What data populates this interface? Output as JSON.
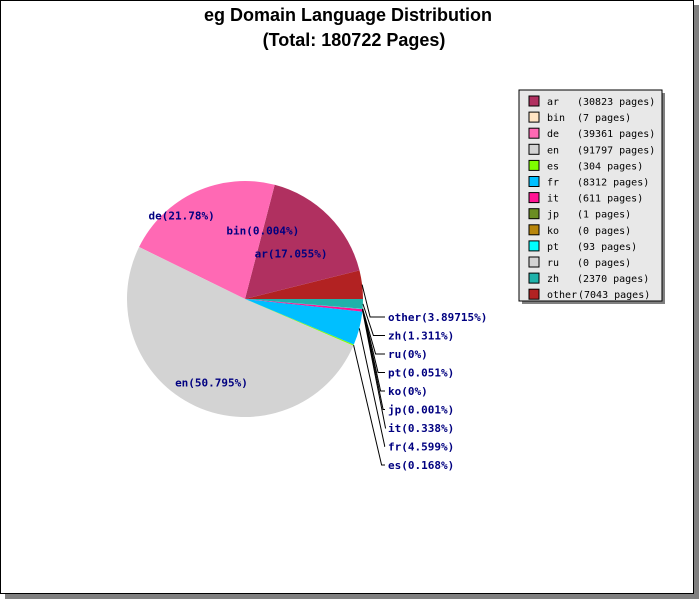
{
  "chart_data": {
    "type": "pie",
    "title_line1": "eg Domain Language Distribution",
    "title_line2": "(Total: 180722 Pages)",
    "total_pages": 180722,
    "slices": [
      {
        "code": "ar",
        "pages": 30823,
        "percent_label": "ar(17.055%)",
        "legend_pages": "(30823 pages)",
        "color": "#b03060"
      },
      {
        "code": "bin",
        "pages": 7,
        "percent_label": "bin(0.004%)",
        "legend_pages": "(7 pages)",
        "color": "#ffe4c4"
      },
      {
        "code": "de",
        "pages": 39361,
        "percent_label": "de(21.78%)",
        "legend_pages": "(39361 pages)",
        "color": "#ff69b4"
      },
      {
        "code": "en",
        "pages": 91797,
        "percent_label": "en(50.795%)",
        "legend_pages": "(91797 pages)",
        "color": "#d3d3d3"
      },
      {
        "code": "es",
        "pages": 304,
        "percent_label": "es(0.168%)",
        "legend_pages": "(304 pages)",
        "color": "#7fff00"
      },
      {
        "code": "fr",
        "pages": 8312,
        "percent_label": "fr(4.599%)",
        "legend_pages": "(8312 pages)",
        "color": "#00bfff"
      },
      {
        "code": "it",
        "pages": 611,
        "percent_label": "it(0.338%)",
        "legend_pages": "(611 pages)",
        "color": "#ff1493"
      },
      {
        "code": "jp",
        "pages": 1,
        "percent_label": "jp(0.001%)",
        "legend_pages": "(1 pages)",
        "color": "#6b8e23"
      },
      {
        "code": "ko",
        "pages": 0,
        "percent_label": "ko(0%)",
        "legend_pages": "(0 pages)",
        "color": "#b8860b"
      },
      {
        "code": "pt",
        "pages": 93,
        "percent_label": "pt(0.051%)",
        "legend_pages": "(93 pages)",
        "color": "#00ffff"
      },
      {
        "code": "ru",
        "pages": 0,
        "percent_label": "ru(0%)",
        "legend_pages": "(0 pages)",
        "color": "#d3d3d3"
      },
      {
        "code": "zh",
        "pages": 2370,
        "percent_label": "zh(1.311%)",
        "legend_pages": "(2370 pages)",
        "color": "#20b2aa"
      },
      {
        "code": "other",
        "pages": 7043,
        "percent_label": "other(3.89715%)",
        "legend_pages": "(7043 pages)",
        "color": "#b22222"
      }
    ],
    "legend_placement": "top-right"
  }
}
